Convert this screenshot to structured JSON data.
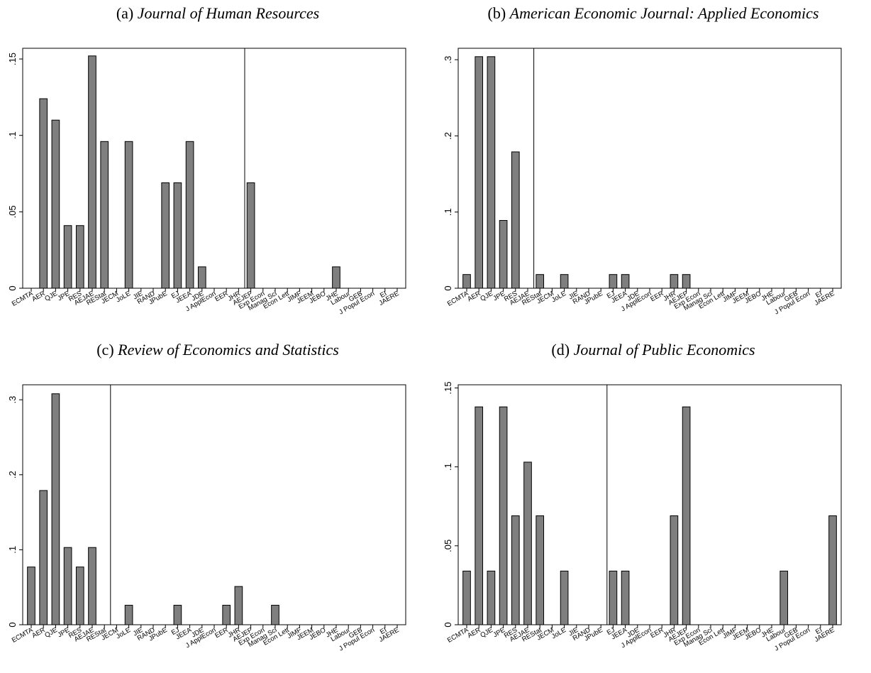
{
  "chart_data": [
    {
      "type": "bar",
      "prefix": "(a)",
      "title": "Journal of Human Resources",
      "categories": [
        "ECMTA",
        "AER",
        "QJE",
        "JPE",
        "RES",
        "AEJAE",
        "REStat",
        "JECM",
        "JoLE",
        "JIE",
        "RAND",
        "JPubE",
        "EJ",
        "JEEA",
        "JDE",
        "J ApplEcon",
        "EER",
        "JHR",
        "AEJEP",
        "Exp Econ",
        "Manag Sci",
        "Econ Lett",
        "JIMF",
        "JEEM",
        "JEBO",
        "JHE",
        "Labour",
        "GEB",
        "J Popul Econ",
        "EI",
        "JAERE"
      ],
      "values": [
        0,
        0.124,
        0.11,
        0.041,
        0.041,
        0.152,
        0.096,
        0,
        0.096,
        0,
        0,
        0.069,
        0.069,
        0.096,
        0.014,
        0,
        0,
        0,
        0.069,
        0,
        0,
        0,
        0,
        0,
        0,
        0.014,
        0,
        0,
        0,
        0,
        0
      ],
      "ylim": [
        0,
        0.157
      ],
      "yticks": [
        0,
        0.05,
        0.1,
        0.15
      ],
      "ytick_labels": [
        "0",
        ".05",
        ".1",
        ".15"
      ],
      "separator_after": "JHR"
    },
    {
      "type": "bar",
      "prefix": "(b)",
      "title": "American Economic Journal: Applied Economics",
      "categories": [
        "ECMTA",
        "AER",
        "QJE",
        "JPE",
        "RES",
        "AEJAE",
        "REStat",
        "JECM",
        "JoLE",
        "JIE",
        "RAND",
        "JPubE",
        "EJ",
        "JEEA",
        "JDE",
        "J ApplEcon",
        "EER",
        "JHR",
        "AEJEP",
        "Exp Econ",
        "Manag Sci",
        "Econ Lett",
        "JIMF",
        "JEEM",
        "JEBO",
        "JHE",
        "Labour",
        "GEB",
        "J Popul Econ",
        "EI",
        "JAERE"
      ],
      "values": [
        0.018,
        0.304,
        0.304,
        0.089,
        0.179,
        0,
        0.018,
        0,
        0.018,
        0,
        0,
        0,
        0.018,
        0.018,
        0,
        0,
        0,
        0.018,
        0.018,
        0,
        0,
        0,
        0,
        0,
        0,
        0,
        0,
        0,
        0,
        0,
        0
      ],
      "ylim": [
        0,
        0.315
      ],
      "yticks": [
        0,
        0.1,
        0.2,
        0.3
      ],
      "ytick_labels": [
        "0",
        ".1",
        ".2",
        ".3"
      ],
      "separator_after": "AEJAE"
    },
    {
      "type": "bar",
      "prefix": "(c)",
      "title": "Review of Economics and Statistics",
      "categories": [
        "ECMTA",
        "AER",
        "QJE",
        "JPE",
        "RES",
        "AEJAE",
        "REStat",
        "JECM",
        "JoLE",
        "JIE",
        "RAND",
        "JPubE",
        "EJ",
        "JEEA",
        "JDE",
        "J ApplEcon",
        "EER",
        "JHR",
        "AEJEP",
        "Exp Econ",
        "Manag Sci",
        "Econ Lett",
        "JIMF",
        "JEEM",
        "JEBO",
        "JHE",
        "Labour",
        "GEB",
        "J Popul Econ",
        "EI",
        "JAERE"
      ],
      "values": [
        0.077,
        0.179,
        0.308,
        0.103,
        0.077,
        0.103,
        0,
        0,
        0.026,
        0,
        0,
        0,
        0.026,
        0,
        0,
        0,
        0.026,
        0.051,
        0,
        0,
        0.026,
        0,
        0,
        0,
        0,
        0,
        0,
        0,
        0,
        0,
        0
      ],
      "ylim": [
        0,
        0.32
      ],
      "yticks": [
        0,
        0.1,
        0.2,
        0.3
      ],
      "ytick_labels": [
        "0",
        ".1",
        ".2",
        ".3"
      ],
      "separator_after": "REStat"
    },
    {
      "type": "bar",
      "prefix": "(d)",
      "title": "Journal of Public Economics",
      "categories": [
        "ECMTA",
        "AER",
        "QJE",
        "JPE",
        "RES",
        "AEJAE",
        "REStat",
        "JECM",
        "JoLE",
        "JIE",
        "RAND",
        "JPubE",
        "EJ",
        "JEEA",
        "JDE",
        "J ApplEcon",
        "EER",
        "JHR",
        "AEJEP",
        "Exp Econ",
        "Manag Sci",
        "Econ Lett",
        "JIMF",
        "JEEM",
        "JEBO",
        "JHE",
        "Labour",
        "GEB",
        "J Popul Econ",
        "EI",
        "JAERE"
      ],
      "values": [
        0.034,
        0.138,
        0.034,
        0.138,
        0.069,
        0.103,
        0.069,
        0,
        0.034,
        0,
        0,
        0,
        0.034,
        0.034,
        0,
        0,
        0,
        0.069,
        0.138,
        0,
        0,
        0,
        0,
        0,
        0,
        0,
        0.034,
        0,
        0,
        0,
        0.069
      ],
      "ylim": [
        0,
        0.152
      ],
      "yticks": [
        0,
        0.05,
        0.1,
        0.15
      ],
      "ytick_labels": [
        "0",
        ".05",
        ".1",
        ".15"
      ],
      "separator_after": "JPubE"
    }
  ]
}
